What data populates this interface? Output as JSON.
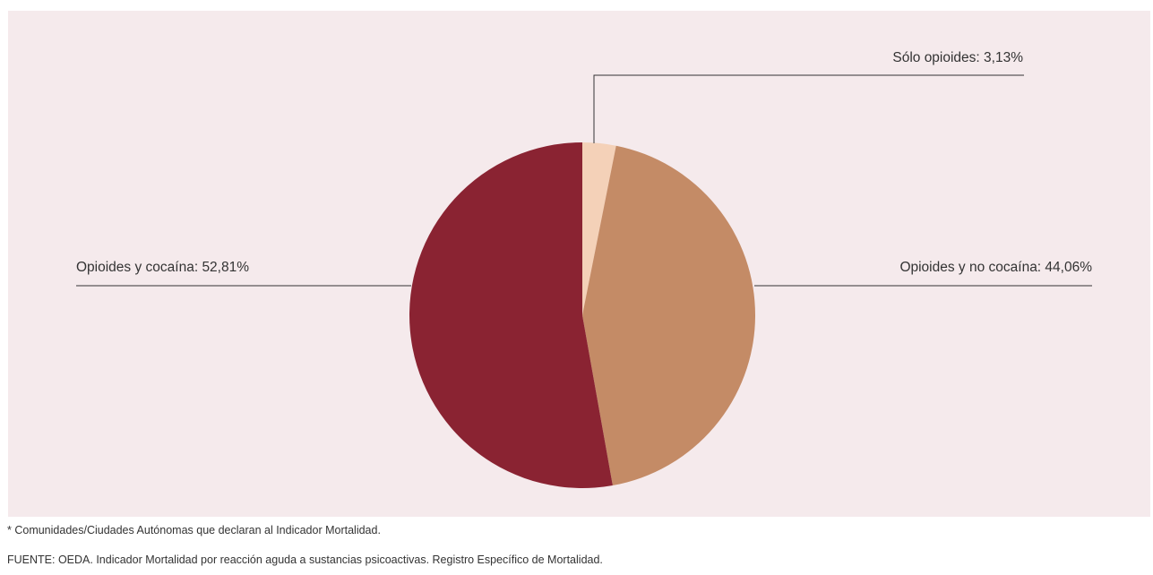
{
  "chart_data": {
    "type": "pie",
    "title": "",
    "slices": [
      {
        "label": "Sólo opioides: 3,13%",
        "value": 3.13,
        "color": "#f4d1b8"
      },
      {
        "label": "Opioides y no cocaína: 44,06%",
        "value": 44.06,
        "color": "#c48b66"
      },
      {
        "label": "Opioides y cocaína: 52,81%",
        "value": 52.81,
        "color": "#8a2332"
      }
    ],
    "start_angle_deg": 0,
    "direction": "clockwise"
  },
  "notes": {
    "footnote": "* Comunidades/Ciudades Autónomas que declaran al Indicador Mortalidad.",
    "source": "FUENTE: OEDA. Indicador Mortalidad por reacción aguda a sustancias psicoactivas. Registro Específico de Mortalidad."
  },
  "colors": {
    "panel_background": "#f5eaec",
    "leader_line": "#333333"
  }
}
